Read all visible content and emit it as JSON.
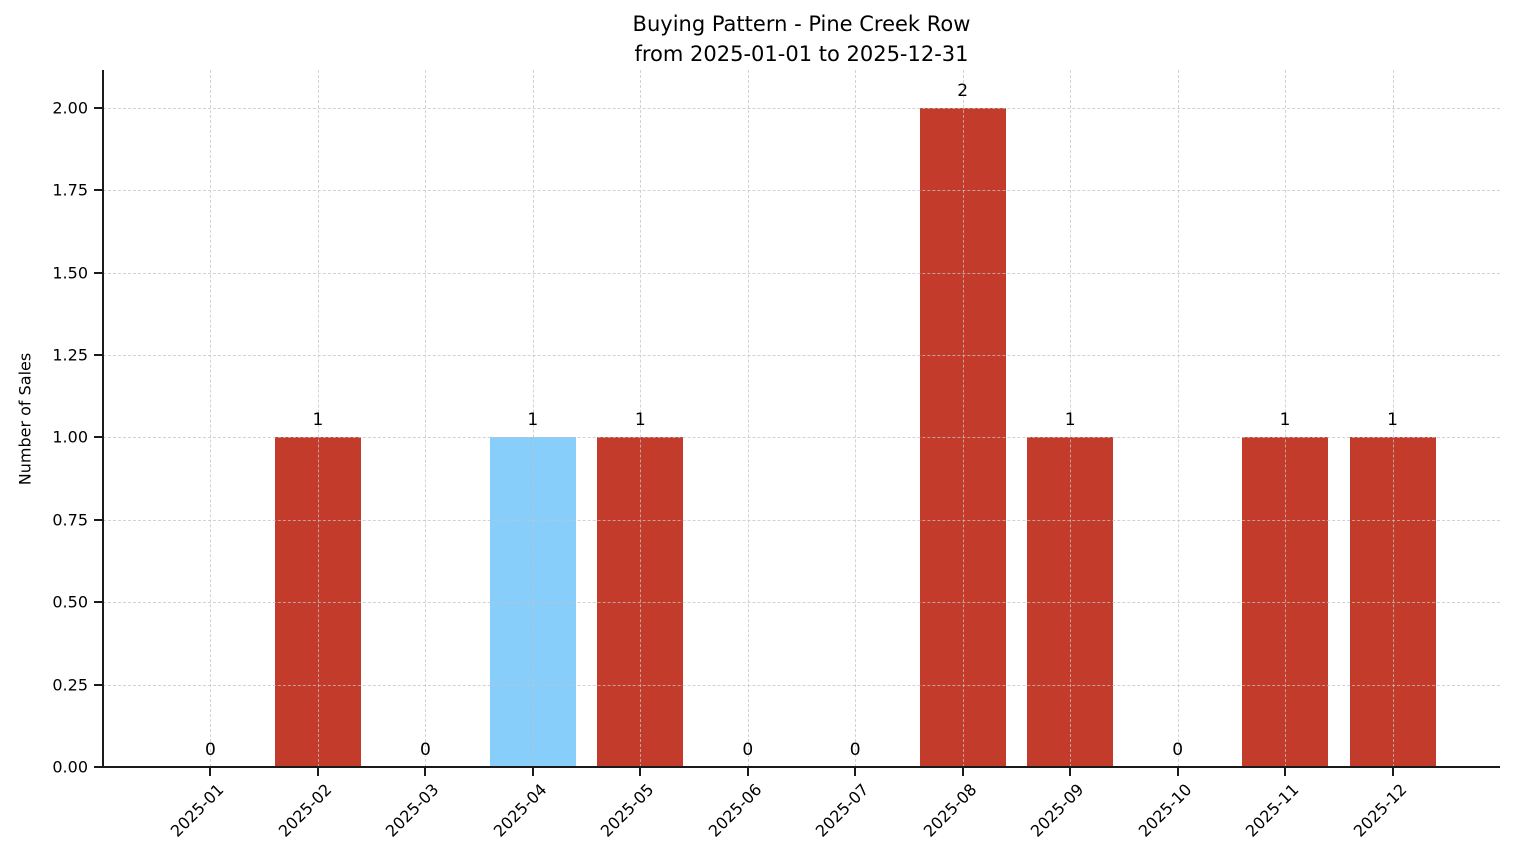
{
  "chart_data": {
    "type": "bar",
    "title": "Buying Pattern - Pine Creek Row",
    "subtitle": "from 2025-01-01 to 2025-12-31",
    "xlabel": "",
    "ylabel": "Number of Sales",
    "categories": [
      "2025-01",
      "2025-02",
      "2025-03",
      "2025-04",
      "2025-05",
      "2025-06",
      "2025-07",
      "2025-08",
      "2025-09",
      "2025-10",
      "2025-11",
      "2025-12"
    ],
    "values": [
      0,
      1,
      0,
      1,
      1,
      0,
      0,
      2,
      1,
      0,
      1,
      1
    ],
    "bar_value_labels": [
      "0",
      "1",
      "0",
      "1",
      "1",
      "0",
      "0",
      "2",
      "1",
      "0",
      "1",
      "1"
    ],
    "highlight_index": 3,
    "ylim": [
      0,
      2.115
    ],
    "ytick_values": [
      0,
      0.25,
      0.5,
      0.75,
      1,
      1.25,
      1.5,
      1.75,
      2
    ],
    "ytick_labels": [
      "0.00",
      "0.25",
      "0.50",
      "0.75",
      "1.00",
      "1.25",
      "1.50",
      "1.75",
      "2.00"
    ],
    "x_tick_rotation_deg": 45,
    "grid": true,
    "grid_style": "dashed",
    "legend": false,
    "colors": {
      "bar": "#C23B2B",
      "highlight_bar": "#87CEFA",
      "grid": "#C3C3C3",
      "axis": "#1A1A1A",
      "text": "#000000",
      "background": "#FFFFFF"
    }
  }
}
